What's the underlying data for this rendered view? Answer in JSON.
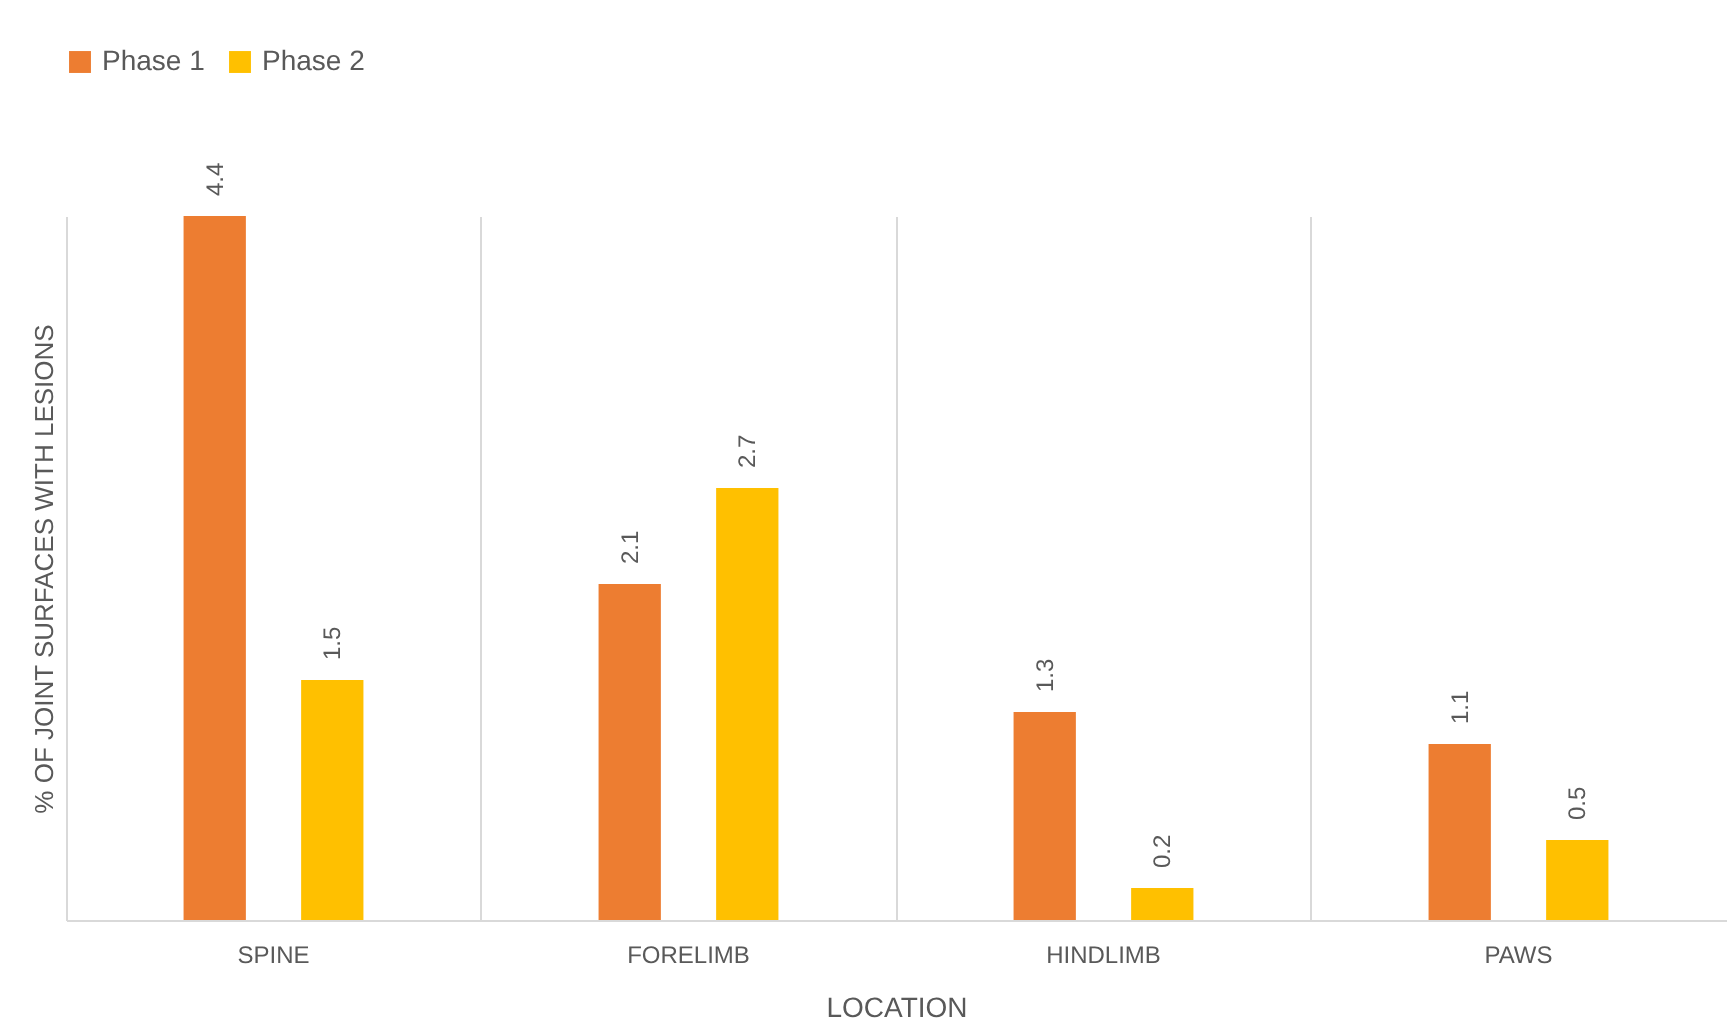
{
  "chart_data": {
    "type": "bar",
    "xlabel": "LOCATION",
    "ylabel": "% OF JOINT SURFACES WITH LESIONS",
    "categories": [
      "SPINE",
      "FORELIMB",
      "HINDLIMB",
      "PAWS"
    ],
    "series": [
      {
        "name": "Phase 1",
        "color": "#ed7d31",
        "values": [
          4.4,
          2.1,
          1.3,
          1.1
        ]
      },
      {
        "name": "Phase 2",
        "color": "#ffc000",
        "values": [
          1.5,
          2.7,
          0.2,
          0.5
        ]
      }
    ],
    "data_labels": true,
    "grid": "x",
    "legend": "top",
    "tick_labels": "x"
  }
}
